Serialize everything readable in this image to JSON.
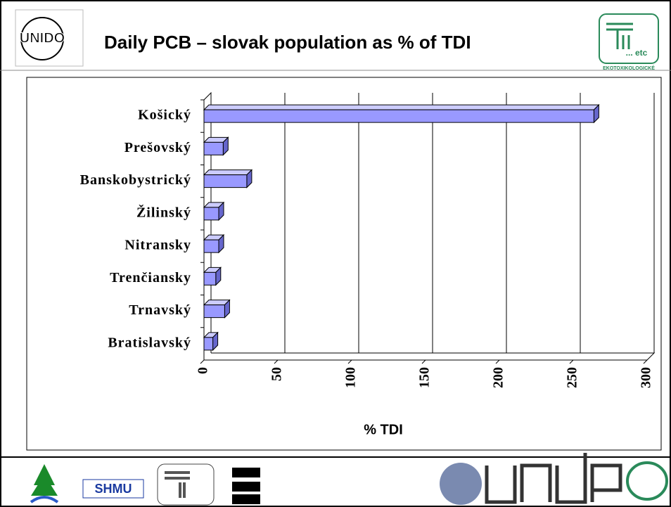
{
  "chart_data": {
    "type": "bar",
    "orientation": "horizontal",
    "title": "Daily PCB – slovak population as % of TDI",
    "categories": [
      "Košický",
      "Prešovský",
      "Banskobystrický",
      "Žilinský",
      "Nitransky",
      "Trenčiansky",
      "Trnavský",
      "Bratislavský"
    ],
    "values": [
      264,
      13,
      29,
      10,
      10,
      8,
      14,
      6
    ],
    "color": "#9999ff",
    "xlabel": "% TDI",
    "xlim": [
      0,
      300
    ],
    "xticks": [
      0,
      50,
      100,
      150,
      200,
      250,
      300
    ],
    "grid": true
  },
  "logos": {
    "top_left": "UNIDO",
    "top_right": "... etc",
    "top_right_caption": "EKOTOXIKOLOGICKÉ",
    "bottom": "SHMU"
  }
}
